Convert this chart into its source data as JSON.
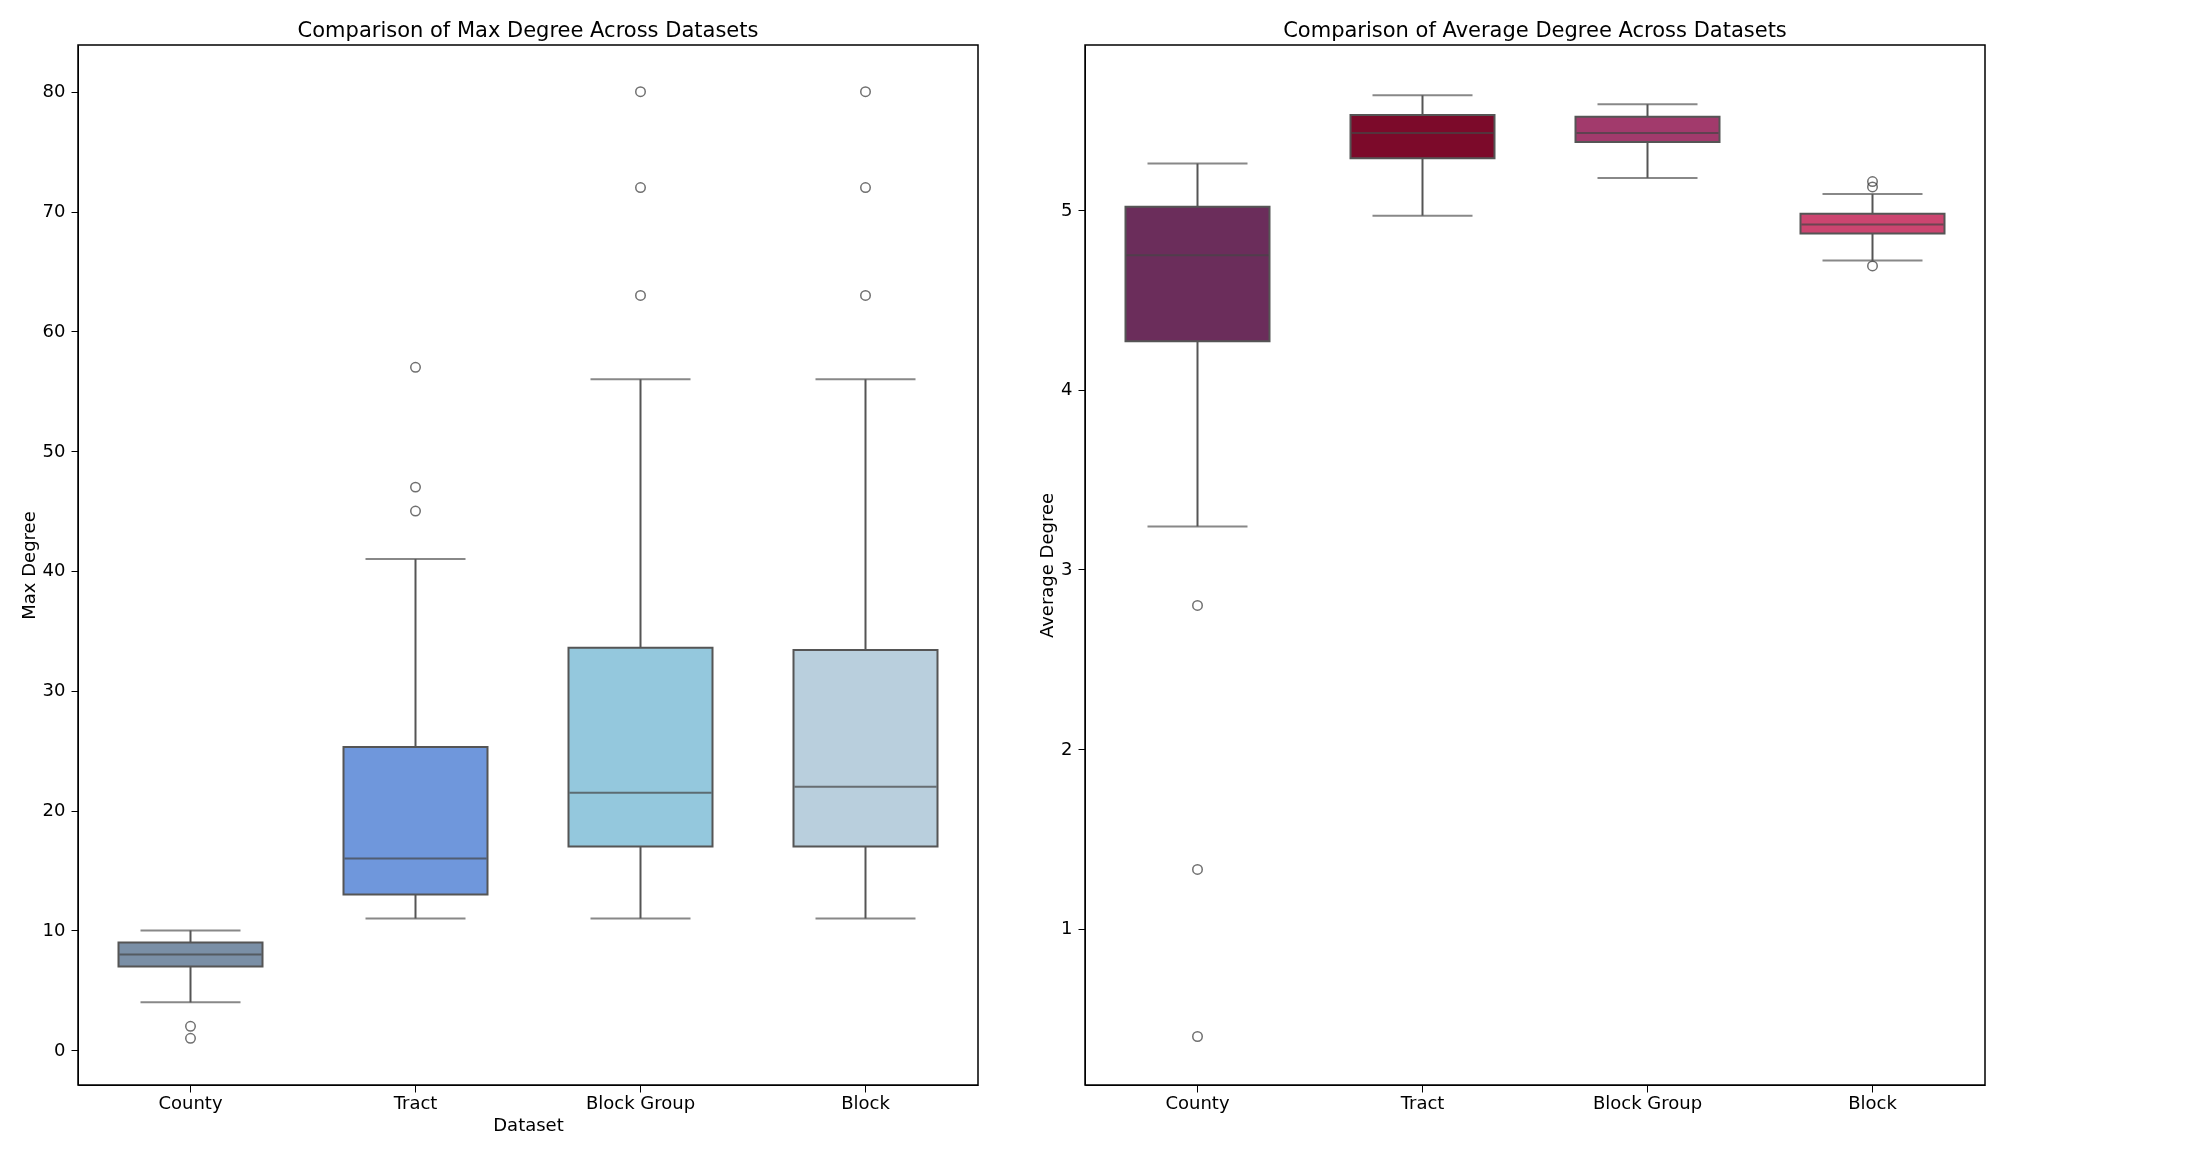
{
  "chart_data": [
    {
      "type": "box",
      "title": "Comparison of Max Degree Across Datasets",
      "xlabel": "Dataset",
      "ylabel": "Max Degree",
      "categories": [
        "County",
        "Tract",
        "Block Group",
        "Block"
      ],
      "colors": [
        "#7a8fa6",
        "#6f97dc",
        "#94c8dd",
        "#b9cfdd"
      ],
      "boxes": [
        {
          "low": 4,
          "q1": 7,
          "median": 8,
          "q3": 9,
          "high": 10,
          "outliers": [
            2,
            1
          ]
        },
        {
          "low": 11,
          "q1": 13,
          "median": 16,
          "q3": 25.3,
          "high": 41,
          "outliers": [
            45,
            47,
            57
          ]
        },
        {
          "low": 11,
          "q1": 17,
          "median": 21.5,
          "q3": 33.6,
          "high": 56,
          "outliers": [
            63,
            72,
            80
          ]
        },
        {
          "low": 11,
          "q1": 17,
          "median": 22,
          "q3": 33.4,
          "high": 56,
          "outliers": [
            63,
            72,
            80
          ]
        }
      ],
      "ylim": [
        -2.9,
        83.9
      ],
      "yticks": [
        0,
        10,
        20,
        30,
        40,
        50,
        60,
        70,
        80
      ],
      "grid": false
    },
    {
      "type": "box",
      "title": "Comparison of Average Degree Across Datasets",
      "ylabel": "Average Degree",
      "categories": [
        "County",
        "Tract",
        "Block Group",
        "Block"
      ],
      "colors": [
        "#6b2d5b",
        "#7c0a2a",
        "#a23a6c",
        "#cc4570"
      ],
      "boxes": [
        {
          "low": 3.24,
          "q1": 4.27,
          "median": 4.75,
          "q3": 5.02,
          "high": 5.26,
          "outliers": [
            2.8,
            1.33,
            0.4
          ]
        },
        {
          "low": 4.97,
          "q1": 5.29,
          "median": 5.43,
          "q3": 5.53,
          "high": 5.64
        },
        {
          "low": 5.18,
          "q1": 5.38,
          "median": 5.43,
          "q3": 5.52,
          "high": 5.59
        },
        {
          "low": 4.72,
          "q1": 4.87,
          "median": 4.92,
          "q3": 4.98,
          "high": 5.09,
          "outliers": [
            5.16,
            5.13,
            4.69
          ]
        }
      ],
      "ylim": [
        0.13,
        5.92
      ],
      "yticks": [
        1,
        2,
        3,
        4,
        5
      ],
      "grid": false
    }
  ]
}
